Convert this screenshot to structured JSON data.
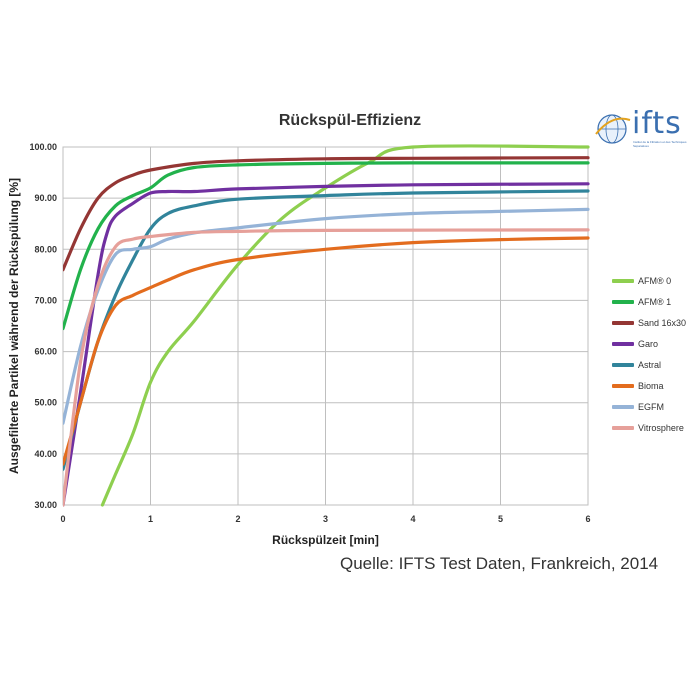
{
  "chart_data": {
    "type": "line",
    "title": "Rückspül-Effizienz",
    "xlabel": "Rückspülzeit [min]",
    "ylabel": "Ausgefilterte Partikel während der Rückspülung [%]",
    "xlim": [
      0,
      6
    ],
    "ylim": [
      30,
      100
    ],
    "xticks": [
      "0",
      "1",
      "2",
      "3",
      "4",
      "5",
      "6"
    ],
    "yticks": [
      "30.00",
      "40.00",
      "50.00",
      "60.00",
      "70.00",
      "80.00",
      "90.00",
      "100.00"
    ],
    "grid": true,
    "legend_position": "right",
    "series": [
      {
        "name": "AFM® 0",
        "color": "#8ecf4f",
        "points": [
          [
            0.45,
            30
          ],
          [
            0.6,
            36
          ],
          [
            0.8,
            44
          ],
          [
            1.0,
            54
          ],
          [
            1.2,
            60
          ],
          [
            1.5,
            66
          ],
          [
            2.0,
            77
          ],
          [
            2.5,
            86
          ],
          [
            3.0,
            92
          ],
          [
            3.5,
            97
          ],
          [
            4.0,
            100
          ],
          [
            6.0,
            100
          ]
        ]
      },
      {
        "name": "AFM® 1",
        "color": "#22b24c",
        "points": [
          [
            0,
            64.5
          ],
          [
            0.2,
            76
          ],
          [
            0.4,
            84
          ],
          [
            0.6,
            88.5
          ],
          [
            0.8,
            90.5
          ],
          [
            1.0,
            92
          ],
          [
            1.2,
            94.5
          ],
          [
            1.5,
            96
          ],
          [
            2.0,
            96.5
          ],
          [
            3.0,
            96.8
          ],
          [
            4.0,
            96.9
          ],
          [
            6.0,
            96.9
          ]
        ]
      },
      {
        "name": "Sand 16x30",
        "color": "#943634",
        "points": [
          [
            0,
            76
          ],
          [
            0.2,
            84
          ],
          [
            0.4,
            90
          ],
          [
            0.6,
            93
          ],
          [
            0.8,
            94.5
          ],
          [
            1.0,
            95.5
          ],
          [
            1.5,
            96.8
          ],
          [
            2.0,
            97.3
          ],
          [
            3.0,
            97.7
          ],
          [
            4.0,
            97.8
          ],
          [
            6.0,
            97.9
          ]
        ]
      },
      {
        "name": "Garo",
        "color": "#7030a0",
        "points": [
          [
            0,
            30
          ],
          [
            0.2,
            52
          ],
          [
            0.4,
            75
          ],
          [
            0.5,
            83
          ],
          [
            0.6,
            86.5
          ],
          [
            0.8,
            89
          ],
          [
            1.0,
            91
          ],
          [
            1.2,
            91.3
          ],
          [
            1.5,
            91.3
          ],
          [
            2.0,
            91.8
          ],
          [
            3.0,
            92.3
          ],
          [
            4.0,
            92.6
          ],
          [
            6.0,
            92.8
          ]
        ]
      },
      {
        "name": "Astral",
        "color": "#31849b",
        "points": [
          [
            0,
            37
          ],
          [
            0.2,
            50
          ],
          [
            0.4,
            62
          ],
          [
            0.6,
            71
          ],
          [
            0.8,
            78
          ],
          [
            1.0,
            84
          ],
          [
            1.2,
            87
          ],
          [
            1.5,
            88.5
          ],
          [
            2.0,
            89.8
          ],
          [
            3.0,
            90.5
          ],
          [
            4.0,
            91
          ],
          [
            6.0,
            91.4
          ]
        ]
      },
      {
        "name": "Bioma",
        "color": "#e36c1e",
        "points": [
          [
            0,
            38
          ],
          [
            0.2,
            50
          ],
          [
            0.4,
            62
          ],
          [
            0.6,
            69
          ],
          [
            0.8,
            71
          ],
          [
            1.0,
            72.5
          ],
          [
            1.2,
            74
          ],
          [
            1.5,
            76
          ],
          [
            2.0,
            78
          ],
          [
            3.0,
            80
          ],
          [
            4.0,
            81.3
          ],
          [
            5.0,
            81.9
          ],
          [
            6.0,
            82.2
          ]
        ]
      },
      {
        "name": "EGFM",
        "color": "#95b3d7",
        "points": [
          [
            0,
            46
          ],
          [
            0.2,
            61
          ],
          [
            0.4,
            72
          ],
          [
            0.6,
            79
          ],
          [
            0.8,
            80
          ],
          [
            1.0,
            80.5
          ],
          [
            1.2,
            82
          ],
          [
            1.5,
            83.2
          ],
          [
            2.0,
            84.2
          ],
          [
            3.0,
            86
          ],
          [
            4.0,
            87
          ],
          [
            5.0,
            87.4
          ],
          [
            6.0,
            87.8
          ]
        ]
      },
      {
        "name": "Vitrosphere",
        "color": "#e6a09a",
        "points": [
          [
            0,
            30
          ],
          [
            0.2,
            58
          ],
          [
            0.4,
            73
          ],
          [
            0.6,
            80.5
          ],
          [
            0.8,
            82
          ],
          [
            1.0,
            82.5
          ],
          [
            1.5,
            83.3
          ],
          [
            2.0,
            83.5
          ],
          [
            3.0,
            83.7
          ],
          [
            6.0,
            83.8
          ]
        ]
      }
    ]
  },
  "source_note": "Quelle: IFTS Test Daten, Frankreich, 2014",
  "logo": {
    "text": "ifts",
    "subtitle": "Institut de la Filtration et des Techniques Séparatives"
  }
}
